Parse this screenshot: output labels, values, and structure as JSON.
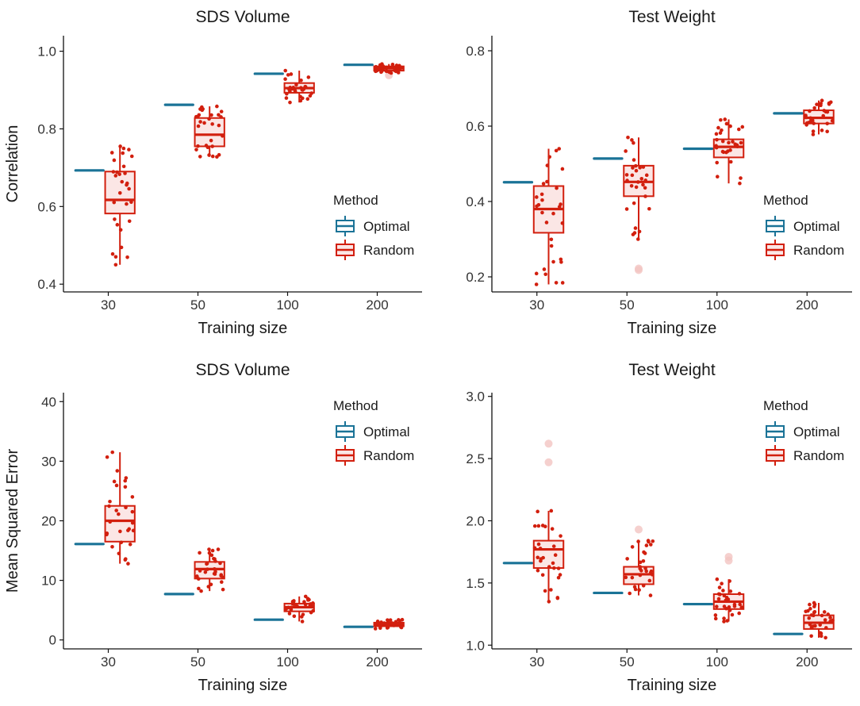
{
  "chart_data": [
    {
      "type": "boxplot",
      "title": "SDS Volume",
      "xlabel": "Training size",
      "ylabel": "Correlation",
      "categories": [
        "30",
        "50",
        "100",
        "200"
      ],
      "ylim": [
        0.38,
        1.04
      ],
      "yticks": [
        0.4,
        0.6,
        0.8,
        1.0
      ],
      "ytick_labels": [
        "0.4",
        "0.6",
        "0.8",
        "1.0"
      ],
      "legend": {
        "title": "Method",
        "items": [
          "Optimal",
          "Random"
        ],
        "position": "right-middle"
      },
      "optimal": [
        0.693,
        0.862,
        0.942,
        0.965
      ],
      "random": [
        {
          "q1": 0.582,
          "median": 0.617,
          "q3": 0.69,
          "whisker_low": 0.45,
          "whisker_high": 0.755,
          "outliers": []
        },
        {
          "q1": 0.755,
          "median": 0.785,
          "q3": 0.828,
          "whisker_low": 0.728,
          "whisker_high": 0.858,
          "outliers": []
        },
        {
          "q1": 0.893,
          "median": 0.905,
          "q3": 0.918,
          "whisker_low": 0.868,
          "whisker_high": 0.95,
          "outliers": []
        },
        {
          "q1": 0.95,
          "median": 0.956,
          "q3": 0.961,
          "whisker_low": 0.944,
          "whisker_high": 0.967,
          "outliers": [
            0.938
          ]
        }
      ]
    },
    {
      "type": "boxplot",
      "title": "Test Weight",
      "xlabel": "Training size",
      "ylabel": "",
      "categories": [
        "30",
        "50",
        "100",
        "200"
      ],
      "ylim": [
        0.16,
        0.84
      ],
      "yticks": [
        0.2,
        0.4,
        0.6,
        0.8
      ],
      "ytick_labels": [
        "0.2",
        "0.4",
        "0.6",
        "0.8"
      ],
      "legend": {
        "title": "Method",
        "items": [
          "Optimal",
          "Random"
        ],
        "position": "right-middle"
      },
      "optimal": [
        0.451,
        0.514,
        0.54,
        0.634
      ],
      "random": [
        {
          "q1": 0.317,
          "median": 0.38,
          "q3": 0.441,
          "whisker_low": 0.18,
          "whisker_high": 0.54,
          "outliers": []
        },
        {
          "q1": 0.414,
          "median": 0.452,
          "q3": 0.495,
          "whisker_low": 0.3,
          "whisker_high": 0.57,
          "outliers": [
            0.222,
            0.218
          ]
        },
        {
          "q1": 0.517,
          "median": 0.545,
          "q3": 0.565,
          "whisker_low": 0.448,
          "whisker_high": 0.618,
          "outliers": []
        },
        {
          "q1": 0.607,
          "median": 0.622,
          "q3": 0.642,
          "whisker_low": 0.578,
          "whisker_high": 0.668,
          "outliers": []
        }
      ]
    },
    {
      "type": "boxplot",
      "title": "SDS Volume",
      "xlabel": "Training size",
      "ylabel": "Mean Squared Error",
      "categories": [
        "30",
        "50",
        "100",
        "200"
      ],
      "ylim": [
        -1.5,
        41.5
      ],
      "yticks": [
        0,
        10,
        20,
        30,
        40
      ],
      "ytick_labels": [
        "0",
        "10",
        "20",
        "30",
        "40"
      ],
      "legend": {
        "title": "Method",
        "items": [
          "Optimal",
          "Random"
        ],
        "position": "top-right"
      },
      "optimal": [
        16.1,
        7.7,
        3.4,
        2.2
      ],
      "random": [
        {
          "q1": 16.5,
          "median": 20.0,
          "q3": 22.5,
          "whisker_low": 12.8,
          "whisker_high": 31.5,
          "outliers": []
        },
        {
          "q1": 10.3,
          "median": 11.9,
          "q3": 13.1,
          "whisker_low": 8.2,
          "whisker_high": 15.2,
          "outliers": []
        },
        {
          "q1": 4.8,
          "median": 5.5,
          "q3": 6.1,
          "whisker_low": 3.1,
          "whisker_high": 7.3,
          "outliers": []
        },
        {
          "q1": 2.3,
          "median": 2.6,
          "q3": 2.9,
          "whisker_low": 1.9,
          "whisker_high": 3.4,
          "outliers": []
        }
      ]
    },
    {
      "type": "boxplot",
      "title": "Test Weight",
      "xlabel": "Training size",
      "ylabel": "",
      "categories": [
        "30",
        "50",
        "100",
        "200"
      ],
      "ylim": [
        0.97,
        3.03
      ],
      "yticks": [
        1.0,
        1.5,
        2.0,
        2.5,
        3.0
      ],
      "ytick_labels": [
        "1.0",
        "1.5",
        "2.0",
        "2.5",
        "3.0"
      ],
      "legend": {
        "title": "Method",
        "items": [
          "Optimal",
          "Random"
        ],
        "position": "top-right"
      },
      "optimal": [
        1.66,
        1.42,
        1.33,
        1.09
      ],
      "random": [
        {
          "q1": 1.62,
          "median": 1.77,
          "q3": 1.84,
          "whisker_low": 1.35,
          "whisker_high": 2.08,
          "outliers": [
            2.47,
            2.62
          ]
        },
        {
          "q1": 1.49,
          "median": 1.57,
          "q3": 1.63,
          "whisker_low": 1.4,
          "whisker_high": 1.84,
          "outliers": [
            1.93
          ]
        },
        {
          "q1": 1.29,
          "median": 1.35,
          "q3": 1.41,
          "whisker_low": 1.19,
          "whisker_high": 1.53,
          "outliers": [
            1.68,
            1.71
          ]
        },
        {
          "q1": 1.13,
          "median": 1.18,
          "q3": 1.24,
          "whisker_low": 1.06,
          "whisker_high": 1.34,
          "outliers": []
        }
      ]
    }
  ],
  "colors": {
    "optimal": "#1a7397",
    "random": "#d21f0e",
    "random_fill": "#fbe6e5",
    "outlier": "#f2c4c2",
    "axis": "#111111"
  }
}
